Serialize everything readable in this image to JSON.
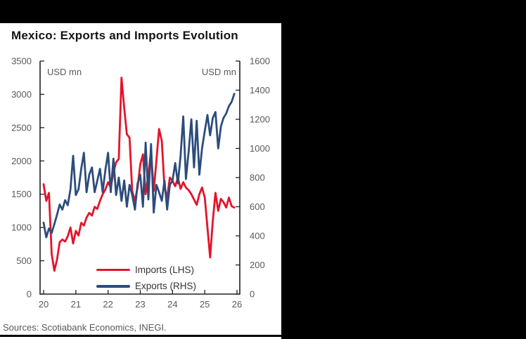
{
  "panel": {
    "background": "#ffffff",
    "page_background": "#000000"
  },
  "chart_data": {
    "type": "line",
    "title": "Mexico: Exports and Imports Evolution",
    "source": "Sources: Scotiabank Economics, INEGI.",
    "axis_color": "#231f20",
    "label_color": "#58595b",
    "grid": false,
    "legend_position": "inside-bottom-center",
    "left_axis": {
      "label": "USD mn",
      "min": 0,
      "max": 3500,
      "ticks": [
        0,
        500,
        1000,
        1500,
        2000,
        2500,
        3000,
        3500
      ]
    },
    "right_axis": {
      "label": "USD mn",
      "min": 0,
      "max": 1600,
      "ticks": [
        0,
        200,
        400,
        600,
        800,
        1000,
        1200,
        1400,
        1600
      ]
    },
    "x_axis": {
      "ticks": [
        "20",
        "21",
        "22",
        "23",
        "24",
        "25",
        "26"
      ],
      "start_month": "2020-01",
      "frequency": "monthly"
    },
    "series": [
      {
        "name": "Imports (LHS)",
        "axis": "left",
        "color": "#e4132a",
        "values": [
          1650,
          1400,
          1520,
          600,
          350,
          520,
          780,
          820,
          790,
          870,
          1000,
          760,
          950,
          880,
          1070,
          1030,
          1150,
          1220,
          1180,
          1310,
          1280,
          1400,
          1500,
          1570,
          1680,
          1600,
          1820,
          1980,
          2030,
          3250,
          2800,
          2400,
          2350,
          1550,
          1400,
          1600,
          1950,
          2100,
          1500,
          1800,
          2150,
          1550,
          2000,
          2480,
          2300,
          1600,
          1450,
          1750,
          1700,
          1620,
          1750,
          1580,
          1680,
          1600,
          1560,
          1500,
          1420,
          1340,
          1500,
          1600,
          1450,
          1000,
          550,
          1100,
          1520,
          1250,
          1430,
          1380,
          1300,
          1450,
          1320,
          1300
        ]
      },
      {
        "name": "Exports (RHS)",
        "axis": "right",
        "color": "#2c4c7c",
        "values": [
          490,
          390,
          450,
          420,
          480,
          545,
          615,
          580,
          645,
          610,
          720,
          950,
          680,
          720,
          860,
          970,
          700,
          820,
          870,
          700,
          780,
          860,
          700,
          850,
          970,
          700,
          930,
          680,
          800,
          640,
          780,
          600,
          750,
          680,
          580,
          760,
          820,
          600,
          1040,
          650,
          1030,
          560,
          750,
          700,
          640,
          780,
          580,
          750,
          780,
          900,
          760,
          950,
          1220,
          790,
          980,
          1200,
          870,
          1190,
          820,
          1000,
          1120,
          1230,
          1090,
          1210,
          1250,
          1000,
          1150,
          1210,
          1240,
          1290,
          1320,
          1375
        ]
      }
    ]
  }
}
